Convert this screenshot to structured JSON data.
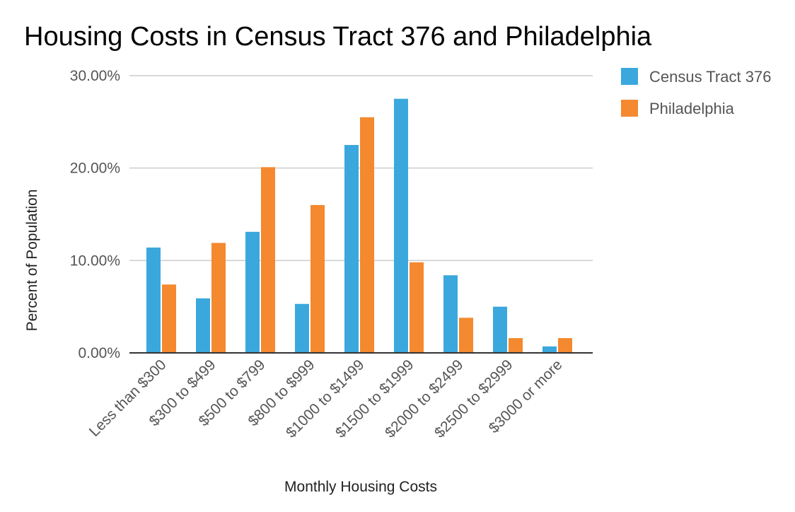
{
  "chart_data": {
    "type": "bar",
    "title": "Housing Costs in Census Tract 376 and Philadelphia",
    "xlabel": "Monthly Housing Costs",
    "ylabel": "Percent of Population",
    "ylim": [
      0,
      30
    ],
    "yticks": [
      0,
      10,
      20,
      30
    ],
    "ytick_labels": [
      "0.00%",
      "10.00%",
      "20.00%",
      "30.00%"
    ],
    "grid": true,
    "legend_position": "top-right",
    "categories": [
      "Less than $300",
      "$300 to $499",
      "$500 to $799",
      "$800 to $999",
      "$1000 to $1499",
      "$1500 to $1999",
      "$2000 to $2499",
      "$2500 to $2999",
      "$3000 or more"
    ],
    "series": [
      {
        "name": "Census Tract 376",
        "color": "#3aa8dd",
        "values": [
          11.4,
          5.9,
          13.1,
          5.3,
          22.5,
          27.5,
          8.4,
          5.0,
          0.7
        ]
      },
      {
        "name": "Philadelphia",
        "color": "#f4892f",
        "values": [
          7.4,
          11.9,
          20.1,
          16.0,
          25.5,
          9.8,
          3.8,
          1.6,
          1.6
        ]
      }
    ]
  }
}
